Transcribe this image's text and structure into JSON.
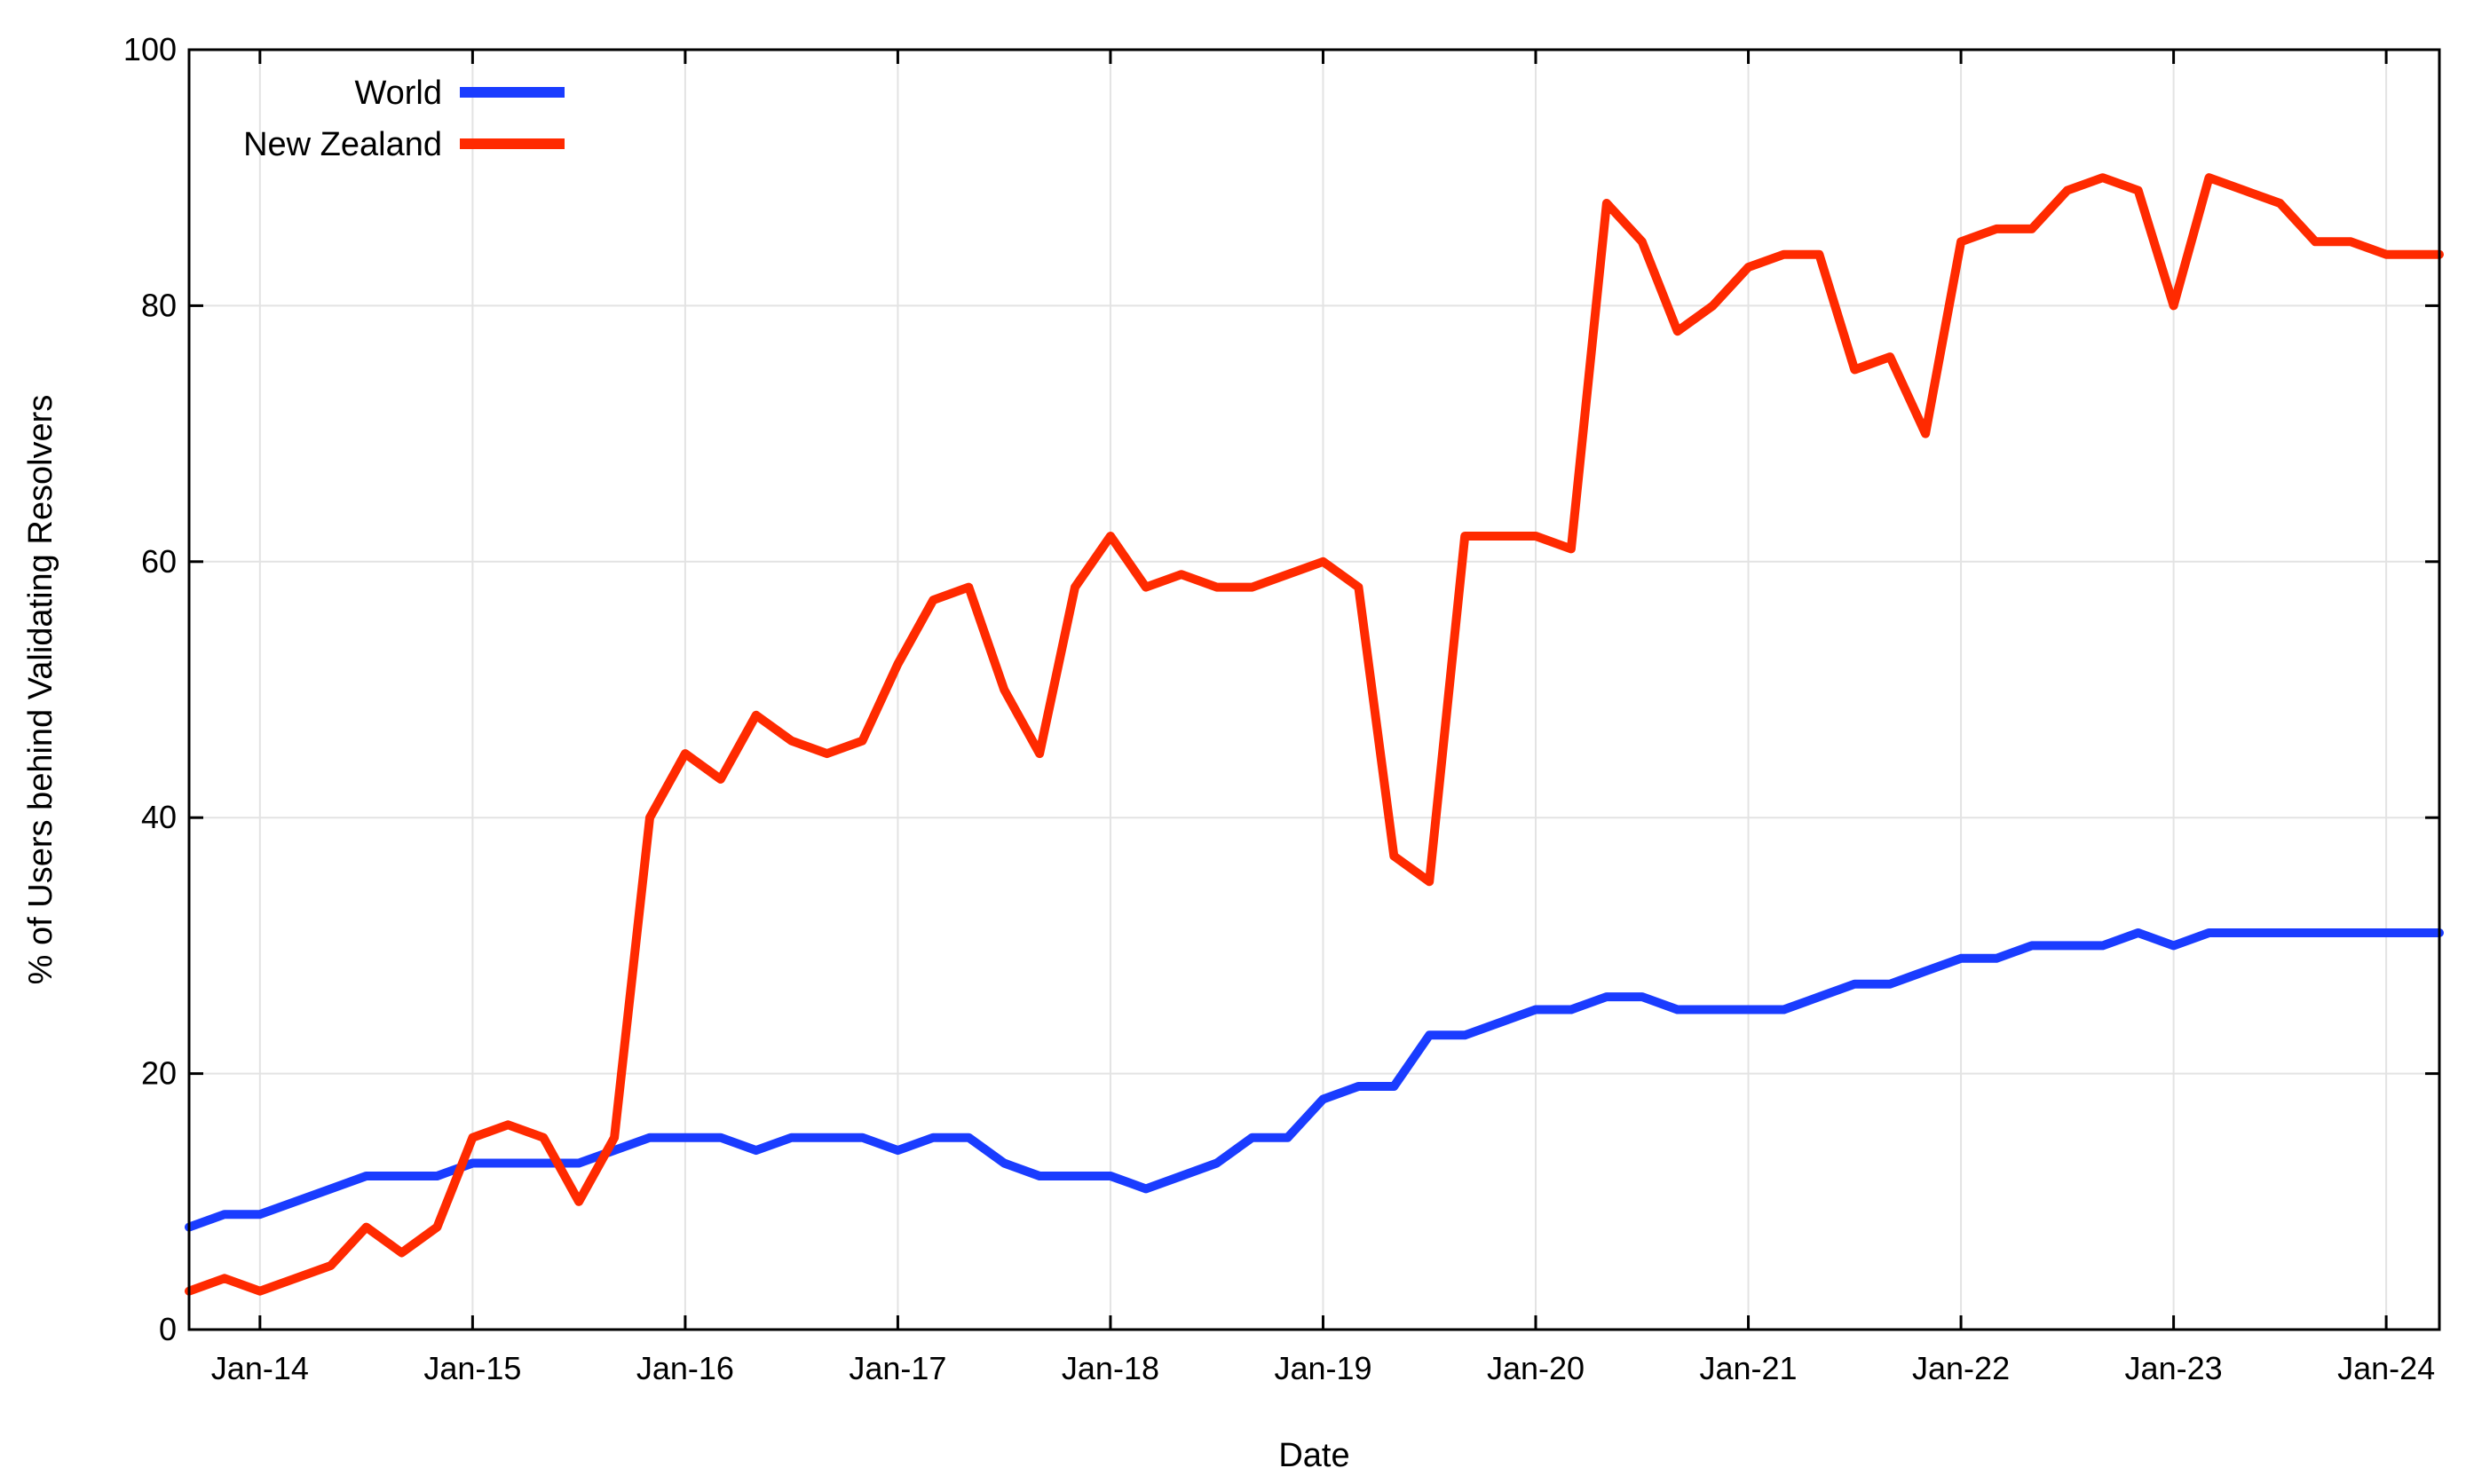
{
  "chart_data": {
    "type": "line",
    "xlabel": "Date",
    "ylabel": "% of Users behind Validating Resolvers",
    "x_range": [
      "2013-09",
      "2024-04"
    ],
    "ylim": [
      0,
      100
    ],
    "y_ticks": [
      0,
      20,
      40,
      60,
      80,
      100
    ],
    "x_ticks": [
      {
        "date": "2014-01",
        "label": "Jan-14"
      },
      {
        "date": "2015-01",
        "label": "Jan-15"
      },
      {
        "date": "2016-01",
        "label": "Jan-16"
      },
      {
        "date": "2017-01",
        "label": "Jan-17"
      },
      {
        "date": "2018-01",
        "label": "Jan-18"
      },
      {
        "date": "2019-01",
        "label": "Jan-19"
      },
      {
        "date": "2020-01",
        "label": "Jan-20"
      },
      {
        "date": "2021-01",
        "label": "Jan-21"
      },
      {
        "date": "2022-01",
        "label": "Jan-22"
      },
      {
        "date": "2023-01",
        "label": "Jan-23"
      },
      {
        "date": "2024-01",
        "label": "Jan-24"
      }
    ],
    "grid": true,
    "legend_position": "top-left",
    "series": [
      {
        "name": "World",
        "color": "#1a3cff",
        "points": [
          [
            "2013-09",
            8
          ],
          [
            "2013-11",
            9
          ],
          [
            "2014-01",
            9
          ],
          [
            "2014-03",
            10
          ],
          [
            "2014-05",
            11
          ],
          [
            "2014-07",
            12
          ],
          [
            "2014-09",
            12
          ],
          [
            "2014-11",
            12
          ],
          [
            "2015-01",
            13
          ],
          [
            "2015-03",
            13
          ],
          [
            "2015-05",
            13
          ],
          [
            "2015-07",
            13
          ],
          [
            "2015-09",
            14
          ],
          [
            "2015-11",
            15
          ],
          [
            "2016-01",
            15
          ],
          [
            "2016-03",
            15
          ],
          [
            "2016-05",
            14
          ],
          [
            "2016-07",
            15
          ],
          [
            "2016-09",
            15
          ],
          [
            "2016-11",
            15
          ],
          [
            "2017-01",
            14
          ],
          [
            "2017-03",
            15
          ],
          [
            "2017-05",
            15
          ],
          [
            "2017-07",
            13
          ],
          [
            "2017-09",
            12
          ],
          [
            "2017-11",
            12
          ],
          [
            "2018-01",
            12
          ],
          [
            "2018-03",
            11
          ],
          [
            "2018-05",
            12
          ],
          [
            "2018-07",
            13
          ],
          [
            "2018-09",
            15
          ],
          [
            "2018-11",
            15
          ],
          [
            "2019-01",
            18
          ],
          [
            "2019-03",
            19
          ],
          [
            "2019-05",
            19
          ],
          [
            "2019-07",
            23
          ],
          [
            "2019-09",
            23
          ],
          [
            "2019-11",
            24
          ],
          [
            "2020-01",
            25
          ],
          [
            "2020-03",
            25
          ],
          [
            "2020-05",
            26
          ],
          [
            "2020-07",
            26
          ],
          [
            "2020-09",
            25
          ],
          [
            "2020-11",
            25
          ],
          [
            "2021-01",
            25
          ],
          [
            "2021-03",
            25
          ],
          [
            "2021-05",
            26
          ],
          [
            "2021-07",
            27
          ],
          [
            "2021-09",
            27
          ],
          [
            "2021-11",
            28
          ],
          [
            "2022-01",
            29
          ],
          [
            "2022-03",
            29
          ],
          [
            "2022-05",
            30
          ],
          [
            "2022-07",
            30
          ],
          [
            "2022-09",
            30
          ],
          [
            "2022-11",
            31
          ],
          [
            "2023-01",
            30
          ],
          [
            "2023-03",
            31
          ],
          [
            "2023-05",
            31
          ],
          [
            "2023-07",
            31
          ],
          [
            "2023-09",
            31
          ],
          [
            "2023-11",
            31
          ],
          [
            "2024-01",
            31
          ],
          [
            "2024-03",
            31
          ],
          [
            "2024-04",
            31
          ]
        ]
      },
      {
        "name": "New Zealand",
        "color": "#ff2a00",
        "points": [
          [
            "2013-09",
            3
          ],
          [
            "2013-11",
            4
          ],
          [
            "2014-01",
            3
          ],
          [
            "2014-03",
            4
          ],
          [
            "2014-05",
            5
          ],
          [
            "2014-07",
            8
          ],
          [
            "2014-09",
            6
          ],
          [
            "2014-11",
            8
          ],
          [
            "2015-01",
            15
          ],
          [
            "2015-03",
            16
          ],
          [
            "2015-05",
            15
          ],
          [
            "2015-07",
            10
          ],
          [
            "2015-09",
            15
          ],
          [
            "2015-11",
            40
          ],
          [
            "2016-01",
            45
          ],
          [
            "2016-03",
            43
          ],
          [
            "2016-05",
            48
          ],
          [
            "2016-07",
            46
          ],
          [
            "2016-09",
            45
          ],
          [
            "2016-11",
            46
          ],
          [
            "2017-01",
            52
          ],
          [
            "2017-03",
            57
          ],
          [
            "2017-05",
            58
          ],
          [
            "2017-07",
            50
          ],
          [
            "2017-09",
            45
          ],
          [
            "2017-11",
            58
          ],
          [
            "2018-01",
            62
          ],
          [
            "2018-03",
            58
          ],
          [
            "2018-05",
            59
          ],
          [
            "2018-07",
            58
          ],
          [
            "2018-09",
            58
          ],
          [
            "2018-11",
            59
          ],
          [
            "2019-01",
            60
          ],
          [
            "2019-03",
            58
          ],
          [
            "2019-05",
            37
          ],
          [
            "2019-07",
            35
          ],
          [
            "2019-09",
            62
          ],
          [
            "2019-11",
            62
          ],
          [
            "2020-01",
            62
          ],
          [
            "2020-03",
            61
          ],
          [
            "2020-05",
            88
          ],
          [
            "2020-07",
            85
          ],
          [
            "2020-09",
            78
          ],
          [
            "2020-11",
            80
          ],
          [
            "2021-01",
            83
          ],
          [
            "2021-03",
            84
          ],
          [
            "2021-05",
            84
          ],
          [
            "2021-07",
            75
          ],
          [
            "2021-09",
            76
          ],
          [
            "2021-11",
            70
          ],
          [
            "2022-01",
            85
          ],
          [
            "2022-03",
            86
          ],
          [
            "2022-05",
            86
          ],
          [
            "2022-07",
            89
          ],
          [
            "2022-09",
            90
          ],
          [
            "2022-11",
            89
          ],
          [
            "2023-01",
            80
          ],
          [
            "2023-03",
            90
          ],
          [
            "2023-05",
            89
          ],
          [
            "2023-07",
            88
          ],
          [
            "2023-09",
            85
          ],
          [
            "2023-11",
            85
          ],
          [
            "2024-01",
            84
          ],
          [
            "2024-03",
            84
          ],
          [
            "2024-04",
            84
          ]
        ]
      }
    ]
  }
}
